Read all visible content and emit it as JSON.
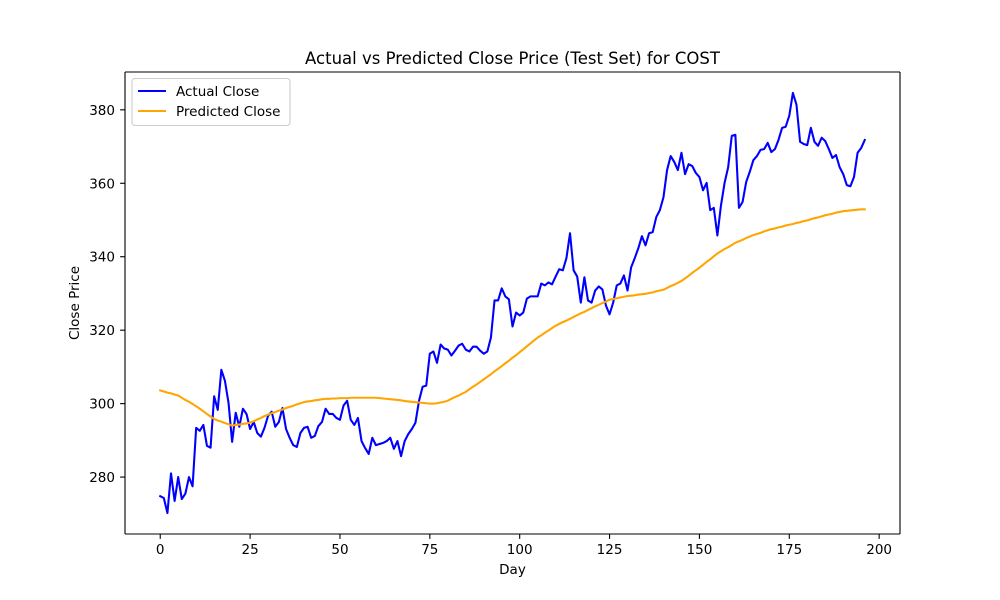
{
  "chart_data": {
    "type": "line",
    "title": "Actual vs Predicted Close Price (Test Set) for COST",
    "xlabel": "Day",
    "ylabel": "Close Price",
    "xlim": [
      -9.8,
      205.8
    ],
    "ylim": [
      264.5,
      390.3
    ],
    "xticks": [
      0,
      25,
      50,
      75,
      100,
      125,
      150,
      175,
      200
    ],
    "yticks": [
      280,
      300,
      320,
      340,
      360,
      380
    ],
    "grid": false,
    "legend_position": "upper left",
    "x": [
      0,
      1,
      2,
      3,
      4,
      5,
      6,
      7,
      8,
      9,
      10,
      11,
      12,
      13,
      14,
      15,
      16,
      17,
      18,
      19,
      20,
      21,
      22,
      23,
      24,
      25,
      26,
      27,
      28,
      29,
      30,
      31,
      32,
      33,
      34,
      35,
      36,
      37,
      38,
      39,
      40,
      41,
      42,
      43,
      44,
      45,
      46,
      47,
      48,
      49,
      50,
      51,
      52,
      53,
      54,
      55,
      56,
      57,
      58,
      59,
      60,
      61,
      62,
      63,
      64,
      65,
      66,
      67,
      68,
      69,
      70,
      71,
      72,
      73,
      74,
      75,
      76,
      77,
      78,
      79,
      80,
      81,
      82,
      83,
      84,
      85,
      86,
      87,
      88,
      89,
      90,
      91,
      92,
      93,
      94,
      95,
      96,
      97,
      98,
      99,
      100,
      101,
      102,
      103,
      104,
      105,
      106,
      107,
      108,
      109,
      110,
      111,
      112,
      113,
      114,
      115,
      116,
      117,
      118,
      119,
      120,
      121,
      122,
      123,
      124,
      125,
      126,
      127,
      128,
      129,
      130,
      131,
      132,
      133,
      134,
      135,
      136,
      137,
      138,
      139,
      140,
      141,
      142,
      143,
      144,
      145,
      146,
      147,
      148,
      149,
      150,
      151,
      152,
      153,
      154,
      155,
      156,
      157,
      158,
      159,
      160,
      161,
      162,
      163,
      164,
      165,
      166,
      167,
      168,
      169,
      170,
      171,
      172,
      173,
      174,
      175,
      176,
      177,
      178,
      179,
      180,
      181,
      182,
      183,
      184,
      185,
      186,
      187,
      188,
      189,
      190,
      191,
      192,
      193,
      194,
      195,
      196
    ],
    "series": [
      {
        "name": "Actual Close",
        "color": "#0000ff",
        "values": [
          274.8,
          274.3,
          270.2,
          281.0,
          273.5,
          280.0,
          274.0,
          275.5,
          280.0,
          277.5,
          293.4,
          292.6,
          294.2,
          288.5,
          288.0,
          302.0,
          298.3,
          309.2,
          306.2,
          300.2,
          289.6,
          297.5,
          293.7,
          298.6,
          297.2,
          293.1,
          295.0,
          292.0,
          291.0,
          293.4,
          296.7,
          297.8,
          293.7,
          295.0,
          298.8,
          293.1,
          290.7,
          288.7,
          288.2,
          292.0,
          293.4,
          293.7,
          290.7,
          291.2,
          293.9,
          295.0,
          298.6,
          297.2,
          297.2,
          296.1,
          295.6,
          299.5,
          300.8,
          295.6,
          294.2,
          296.1,
          289.8,
          287.9,
          286.3,
          290.7,
          288.7,
          289.0,
          289.3,
          289.8,
          290.7,
          287.7,
          289.8,
          285.7,
          289.8,
          291.7,
          293.1,
          294.8,
          300.8,
          304.6,
          304.9,
          313.6,
          314.2,
          311.1,
          316.1,
          315.0,
          314.7,
          313.1,
          314.4,
          315.8,
          316.3,
          314.7,
          314.2,
          315.5,
          315.5,
          314.4,
          313.6,
          314.2,
          318.0,
          328.1,
          328.1,
          331.4,
          329.2,
          328.4,
          321.0,
          324.8,
          324.0,
          324.8,
          328.6,
          329.2,
          329.2,
          329.2,
          332.7,
          332.2,
          333.0,
          332.5,
          334.6,
          336.6,
          336.3,
          339.6,
          346.4,
          336.3,
          334.6,
          327.5,
          334.4,
          328.1,
          327.5,
          330.8,
          331.9,
          331.1,
          326.7,
          324.3,
          327.5,
          332.2,
          332.7,
          334.9,
          330.8,
          337.1,
          339.6,
          342.3,
          345.6,
          343.1,
          346.4,
          346.7,
          350.8,
          352.7,
          356.2,
          363.6,
          367.4,
          365.8,
          363.6,
          368.3,
          362.5,
          365.2,
          364.7,
          362.8,
          361.7,
          358.1,
          360.1,
          352.7,
          353.3,
          345.8,
          354.0,
          360.1,
          364.4,
          372.9,
          373.2,
          353.3,
          354.9,
          360.3,
          363.1,
          366.3,
          367.4,
          369.1,
          369.3,
          371.0,
          368.5,
          369.3,
          371.8,
          375.1,
          375.4,
          378.4,
          384.6,
          381.4,
          371.3,
          370.7,
          370.4,
          375.1,
          371.3,
          370.2,
          372.4,
          371.5,
          369.3,
          366.9,
          367.7,
          364.4,
          362.5,
          359.5,
          359.2,
          361.7,
          368.3,
          369.6,
          371.8
        ]
      },
      {
        "name": "Predicted Close",
        "color": "#ffa500",
        "values": [
          303.6,
          303.3,
          303.0,
          302.8,
          302.5,
          302.2,
          301.6,
          301.0,
          300.5,
          299.9,
          299.3,
          298.6,
          297.9,
          297.2,
          296.5,
          295.8,
          295.4,
          295.1,
          294.7,
          294.4,
          294.0,
          294.2,
          294.3,
          294.5,
          294.6,
          294.8,
          295.2,
          295.7,
          296.1,
          296.6,
          297.0,
          297.4,
          297.7,
          298.1,
          298.4,
          298.8,
          299.1,
          299.4,
          299.8,
          300.1,
          300.4,
          300.6,
          300.7,
          300.9,
          301.0,
          301.2,
          301.3,
          301.3,
          301.4,
          301.4,
          301.5,
          301.5,
          301.5,
          301.6,
          301.6,
          301.6,
          301.6,
          301.6,
          301.6,
          301.6,
          301.6,
          301.5,
          301.4,
          301.3,
          301.2,
          301.1,
          301.0,
          300.9,
          300.7,
          300.6,
          300.5,
          300.4,
          300.3,
          300.2,
          300.1,
          300.0,
          300.0,
          300.1,
          300.3,
          300.5,
          300.8,
          301.3,
          301.8,
          302.2,
          302.7,
          303.2,
          303.9,
          304.6,
          305.2,
          305.9,
          306.6,
          307.3,
          308.0,
          308.8,
          309.5,
          310.2,
          311.0,
          311.7,
          312.5,
          313.2,
          314.0,
          314.8,
          315.6,
          316.4,
          317.2,
          318.0,
          318.6,
          319.3,
          319.9,
          320.6,
          321.2,
          321.7,
          322.2,
          322.6,
          323.1,
          323.6,
          324.1,
          324.6,
          325.0,
          325.5,
          326.0,
          326.5,
          326.9,
          327.4,
          327.8,
          328.3,
          328.5,
          328.7,
          328.9,
          329.1,
          329.3,
          329.4,
          329.5,
          329.7,
          329.8,
          329.9,
          330.1,
          330.3,
          330.6,
          330.8,
          331.0,
          331.5,
          332.0,
          332.4,
          332.9,
          333.4,
          334.1,
          334.8,
          335.6,
          336.3,
          337.0,
          337.8,
          338.6,
          339.3,
          340.1,
          340.9,
          341.5,
          342.1,
          342.6,
          343.2,
          343.8,
          344.2,
          344.6,
          345.1,
          345.5,
          345.9,
          346.2,
          346.5,
          346.9,
          347.2,
          347.5,
          347.7,
          348.0,
          348.2,
          348.5,
          348.7,
          348.9,
          349.2,
          349.4,
          349.7,
          349.9,
          350.2,
          350.5,
          350.7,
          351.0,
          351.3,
          351.5,
          351.7,
          352.0,
          352.2,
          352.4,
          352.5,
          352.6,
          352.7,
          352.8,
          352.9,
          352.9
        ]
      }
    ]
  }
}
